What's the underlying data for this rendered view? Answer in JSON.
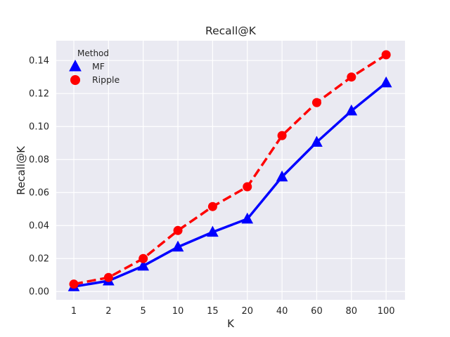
{
  "chart_data": {
    "type": "line",
    "title": "Recall@K",
    "xlabel": "K",
    "ylabel": "Recall@K",
    "categories": [
      "1",
      "2",
      "5",
      "10",
      "15",
      "20",
      "40",
      "60",
      "80",
      "100"
    ],
    "ylim": [
      -0.005,
      0.152
    ],
    "yticks": [
      "0.00",
      "0.02",
      "0.04",
      "0.06",
      "0.08",
      "0.10",
      "0.12",
      "0.14"
    ],
    "grid": true,
    "legend_title": "Method",
    "legend_position": "top-left",
    "series": [
      {
        "name": "MF",
        "values": [
          0.003,
          0.0065,
          0.0155,
          0.027,
          0.036,
          0.044,
          0.0695,
          0.0905,
          0.1095,
          0.1265
        ],
        "color": "#0000ff",
        "marker": "triangle",
        "dash": "solid"
      },
      {
        "name": "Ripple",
        "values": [
          0.0045,
          0.0085,
          0.02,
          0.037,
          0.0515,
          0.0635,
          0.0945,
          0.1145,
          0.13,
          0.1435
        ],
        "color": "#ff0000",
        "marker": "circle",
        "dash": "dashed"
      }
    ]
  }
}
